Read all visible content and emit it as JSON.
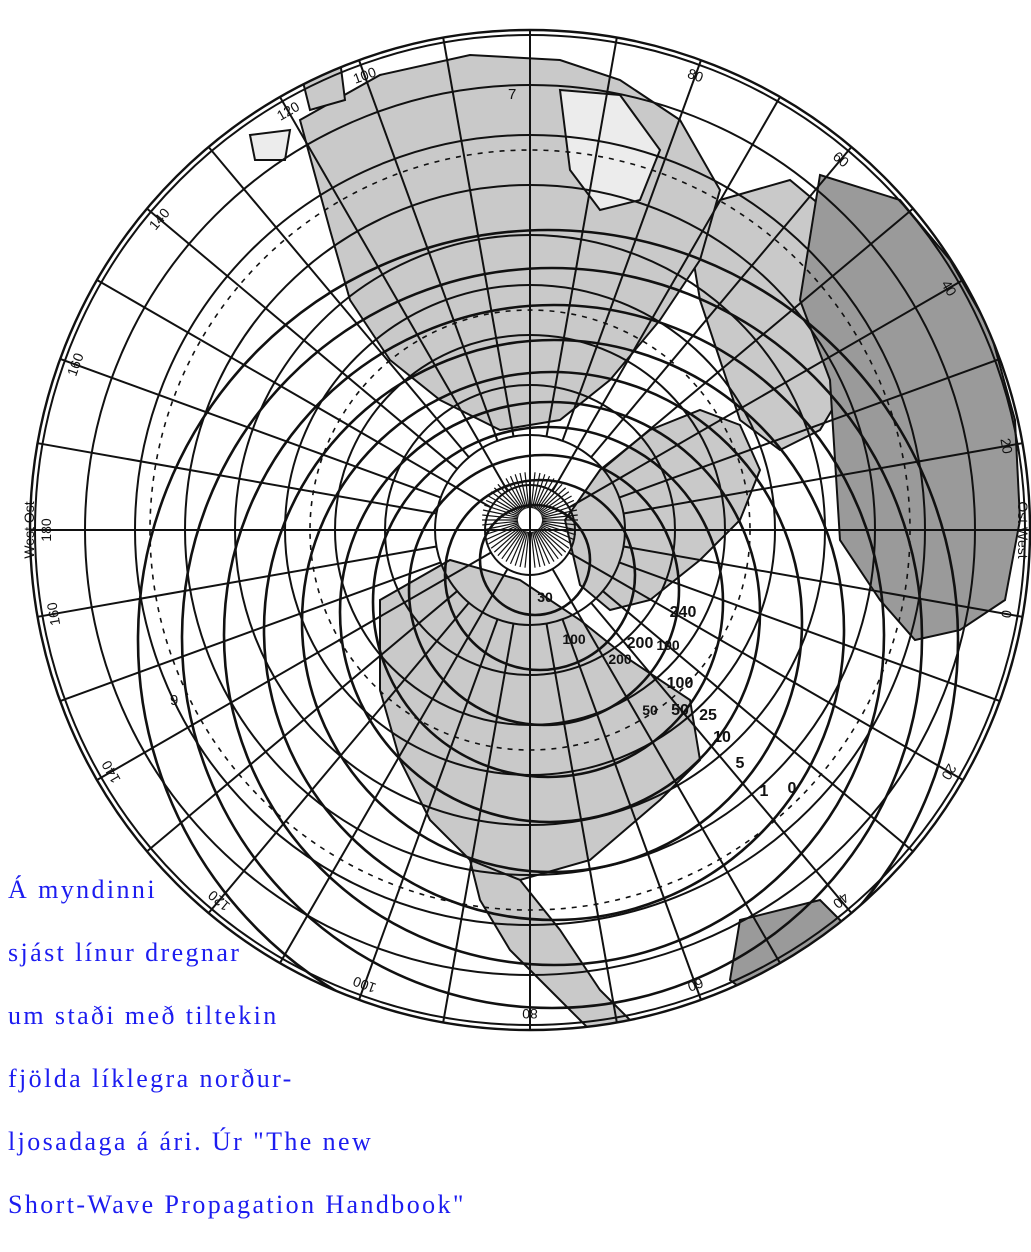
{
  "map": {
    "type": "polar azimuthal projection of the northern hemisphere",
    "colors": {
      "land_shaded": "#c9c9c9",
      "land_dark": "#9a9a9a",
      "land_light": "#ececec",
      "lines": "#111111",
      "background": "#ffffff",
      "caption": "#1c1cf0"
    },
    "longitude_labels": [
      "100",
      "80",
      "60",
      "40",
      "20",
      "0",
      "20",
      "40",
      "60",
      "80",
      "100",
      "120",
      "140",
      "160",
      "180",
      "160",
      "140",
      "120"
    ],
    "hemisphere_labels": {
      "east_left": "West Ost",
      "east_right": "Ost West"
    },
    "aurora_day_isolines": [
      "240",
      "200",
      "100",
      "50",
      "25",
      "10",
      "5",
      "1",
      "0"
    ],
    "aurora_inner_labels": [
      "30",
      "100",
      "200",
      "100",
      "50"
    ],
    "stray_labels": [
      "7",
      "9"
    ]
  },
  "caption": {
    "lines": [
      "Á myndinni",
      "sjást línur dregnar",
      "um staði með tiltekin",
      "fjölda líklegra norður-",
      "ljosadaga á ári. Úr \"The new",
      "Short-Wave Propagation Handbook\""
    ]
  }
}
